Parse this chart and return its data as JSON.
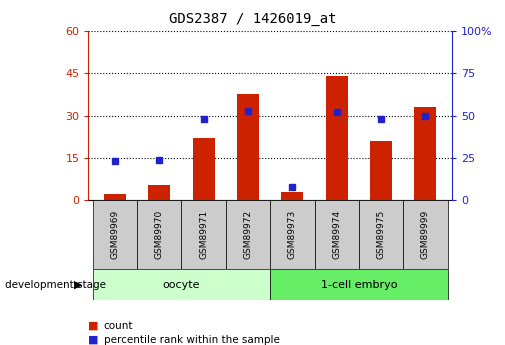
{
  "title": "GDS2387 / 1426019_at",
  "samples": [
    "GSM89969",
    "GSM89970",
    "GSM89971",
    "GSM89972",
    "GSM89973",
    "GSM89974",
    "GSM89975",
    "GSM89999"
  ],
  "counts": [
    2.0,
    5.5,
    22.0,
    37.5,
    3.0,
    44.0,
    21.0,
    33.0
  ],
  "percentiles": [
    23,
    24,
    48,
    53,
    8,
    52,
    48,
    50
  ],
  "left_ylim": [
    0,
    60
  ],
  "right_ylim": [
    0,
    100
  ],
  "left_yticks": [
    0,
    15,
    30,
    45,
    60
  ],
  "right_yticks": [
    0,
    25,
    50,
    75,
    100
  ],
  "right_yticklabels": [
    "0",
    "25",
    "50",
    "75",
    "100%"
  ],
  "groups": [
    {
      "label": "oocyte",
      "indices": [
        0,
        1,
        2,
        3
      ],
      "color": "#ccffcc"
    },
    {
      "label": "1-cell embryo",
      "indices": [
        4,
        5,
        6,
        7
      ],
      "color": "#66ee66"
    }
  ],
  "bar_color": "#cc2200",
  "percentile_color": "#2222cc",
  "bar_width": 0.5,
  "grid_color": "black",
  "bg_color": "white",
  "plot_bg": "white",
  "tick_box_color": "#cccccc",
  "development_stage_label": "development stage",
  "legend_count_label": "count",
  "legend_percentile_label": "percentile rank within the sample",
  "left_axis_color": "#cc2200",
  "right_axis_color": "#2222cc",
  "title_fontsize": 10
}
